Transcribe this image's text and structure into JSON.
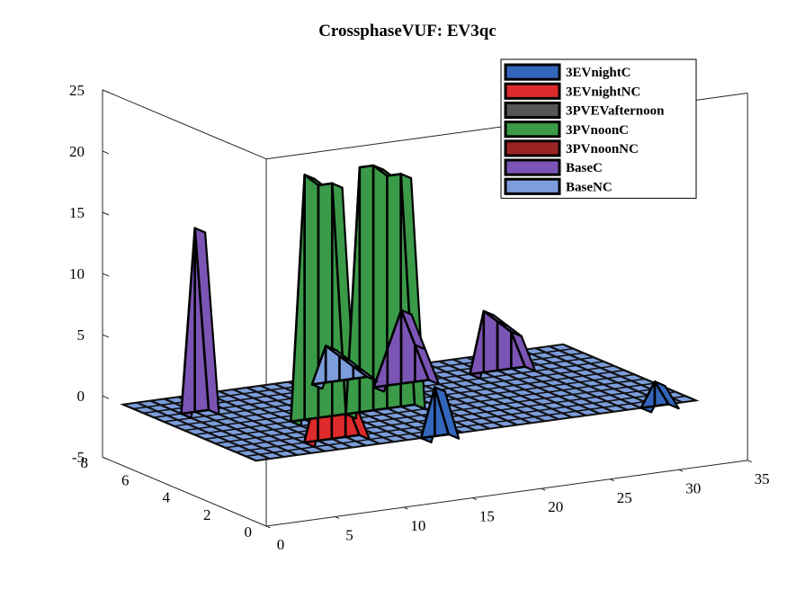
{
  "chart_data": {
    "type": "surface3d",
    "title": "CrossphaseVUF: EV3qc",
    "xlabel": "",
    "ylabel": "",
    "zlabel": "",
    "xlim": [
      0,
      35
    ],
    "ylim": [
      0,
      8
    ],
    "zlim": [
      -5,
      25
    ],
    "x_ticks": [
      "0",
      "5",
      "10",
      "15",
      "20",
      "25",
      "30",
      "35"
    ],
    "y_ticks": [
      "0",
      "2",
      "4",
      "6",
      "8"
    ],
    "z_ticks": [
      "-5",
      "0",
      "5",
      "10",
      "15",
      "20",
      "25"
    ],
    "legend_position": "top-right",
    "series": [
      {
        "name": "3EVnightC",
        "color": "#3366bb"
      },
      {
        "name": "3EVnightNC",
        "color": "#dd2a2a"
      },
      {
        "name": "3PVEVafternoon",
        "color": "#555555"
      },
      {
        "name": "3PVnoonC",
        "color": "#3a9a48"
      },
      {
        "name": "3PVnoonNC",
        "color": "#9b2323"
      },
      {
        "name": "BaseC",
        "color": "#7b55b5"
      },
      {
        "name": "BaseNC",
        "color": "#7c9ddc"
      }
    ],
    "bands": [
      {
        "series": "3EVnightC",
        "y": 0,
        "values": [
          [
            12,
            0
          ],
          [
            13,
            4
          ],
          [
            14,
            0
          ],
          [
            28,
            0
          ],
          [
            29,
            2
          ],
          [
            30,
            0
          ]
        ]
      },
      {
        "series": "3EVnightNC",
        "y": 1,
        "values": [
          [
            5,
            0
          ],
          [
            6,
            4.5
          ],
          [
            7,
            3
          ],
          [
            8,
            3
          ],
          [
            9,
            0
          ]
        ]
      },
      {
        "series": "3PVEVafternoon",
        "y": 2,
        "values": []
      },
      {
        "series": "3PVnoonC",
        "y": 3,
        "values": [
          [
            7,
            0
          ],
          [
            8,
            20
          ],
          [
            9,
            19
          ],
          [
            10,
            19
          ],
          [
            11,
            0
          ],
          [
            12,
            20
          ],
          [
            13,
            20
          ],
          [
            14,
            19
          ],
          [
            15,
            19
          ],
          [
            16,
            0
          ]
        ]
      },
      {
        "series": "3PVnoonNC",
        "y": 4,
        "values": []
      },
      {
        "series": "BaseC",
        "y": 5,
        "values": [
          [
            2,
            0
          ],
          [
            3,
            15
          ],
          [
            4,
            0
          ],
          [
            16,
            0
          ],
          [
            17,
            3
          ],
          [
            18,
            6
          ],
          [
            19,
            3
          ],
          [
            20,
            0
          ],
          [
            23,
            0
          ],
          [
            24,
            5
          ],
          [
            25,
            4
          ],
          [
            26,
            3
          ],
          [
            27,
            0
          ]
        ]
      },
      {
        "series": "BaseNC",
        "y": 6,
        "values": [
          [
            13,
            0
          ],
          [
            14,
            3
          ],
          [
            15,
            2
          ],
          [
            16,
            1
          ],
          [
            17,
            0
          ]
        ]
      }
    ]
  }
}
